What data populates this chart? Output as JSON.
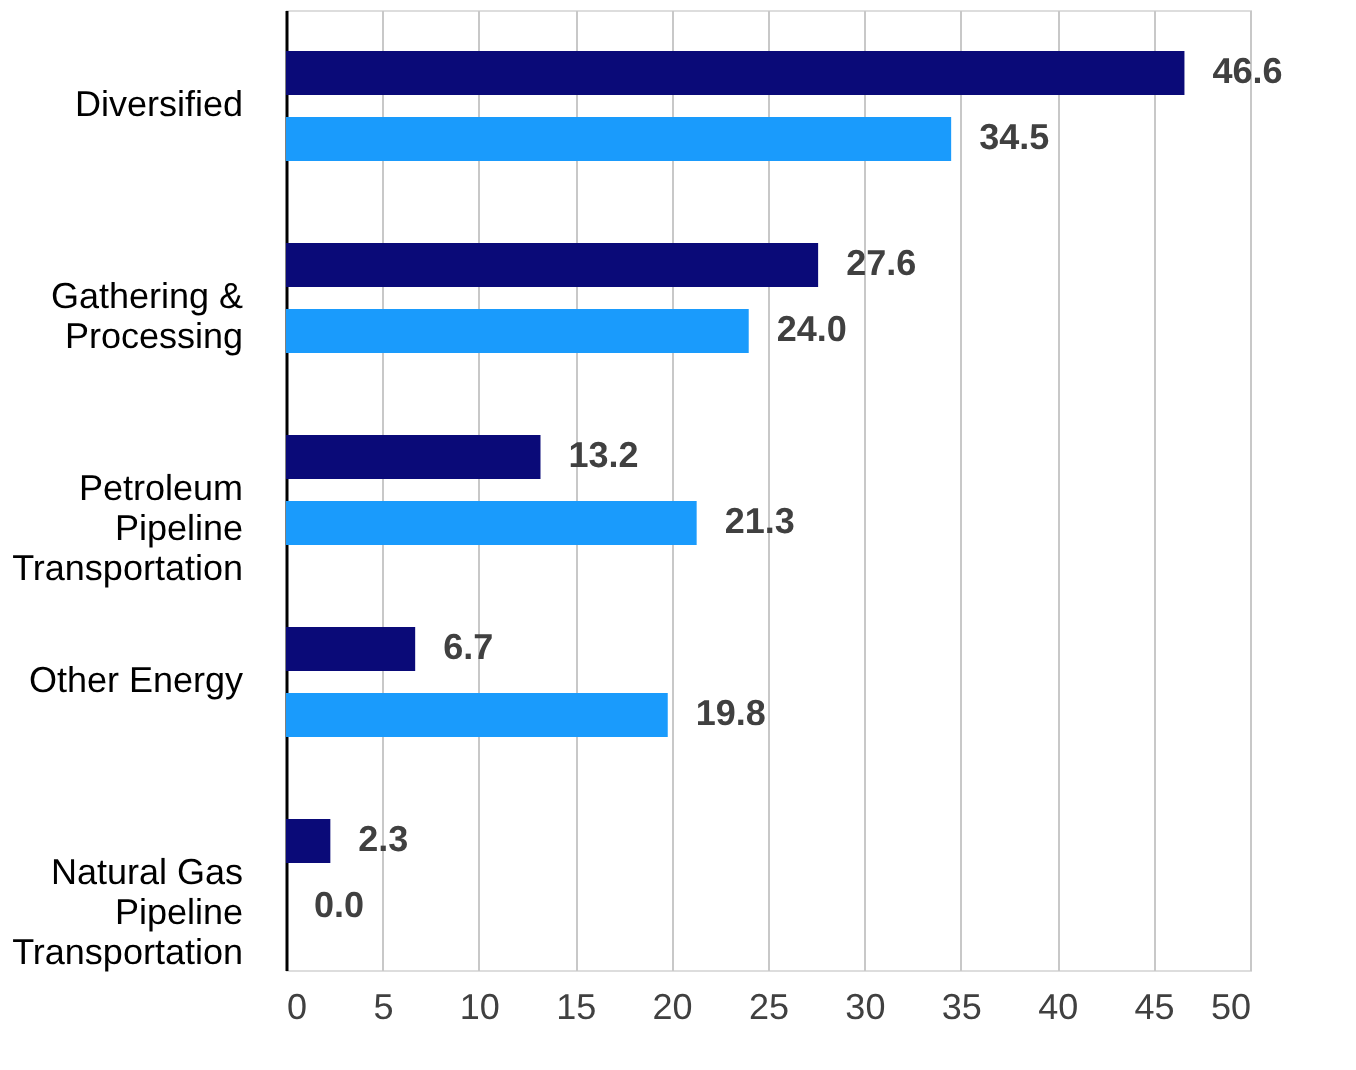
{
  "chart_data": {
    "type": "bar",
    "orientation": "horizontal",
    "categories": [
      "Diversified",
      "Gathering &\nProcessing",
      "Petroleum\nPipeline\nTransportation",
      "Other Energy",
      "Natural Gas\nPipeline\nTransportation"
    ],
    "series": [
      {
        "color": "#0a0a78",
        "values": [
          46.6,
          27.6,
          13.2,
          6.7,
          2.3
        ],
        "value_labels": [
          "46.6",
          "27.6",
          "13.2",
          "6.7",
          "2.3"
        ]
      },
      {
        "color": "#1a9bfc",
        "values": [
          34.5,
          24.0,
          21.3,
          19.8,
          0.0
        ],
        "value_labels": [
          "34.5",
          "24.0",
          "21.3",
          "19.8",
          "0.0"
        ]
      }
    ],
    "xlim": [
      0,
      50
    ],
    "xticks": [
      0,
      5,
      10,
      15,
      20,
      25,
      30,
      35,
      40,
      45,
      50
    ],
    "grid": "x",
    "legend": false
  }
}
